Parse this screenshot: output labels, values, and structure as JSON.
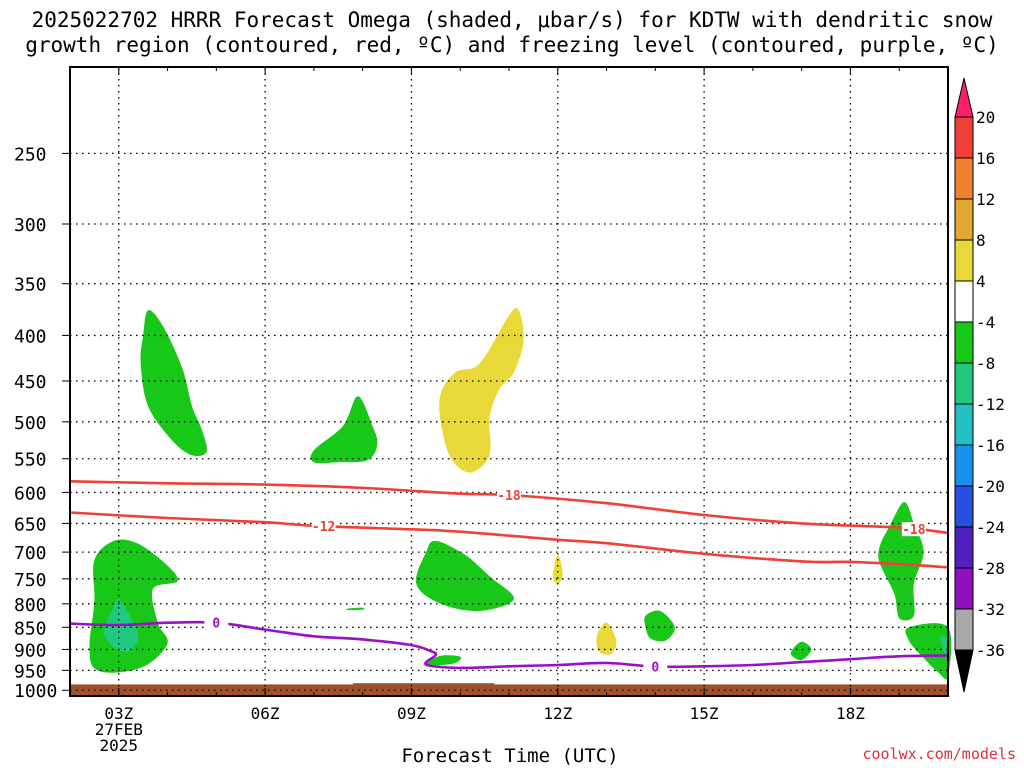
{
  "title_line1": "2025022702 HRRR Forecast Omega (shaded, μbar/s) for KDTW with dendritic snow",
  "title_line2": "growth region (contoured, red, ºC) and freezing level (contoured, purple, ºC)",
  "credit": "coolwx.com/models",
  "chart_data": {
    "type": "time-height cross section",
    "xlabel": "Forecast Time (UTC)",
    "x_ticks": [
      {
        "hour": 3,
        "lines": [
          "03Z",
          "27FEB",
          "2025"
        ]
      },
      {
        "hour": 6,
        "lines": [
          "06Z"
        ]
      },
      {
        "hour": 9,
        "lines": [
          "09Z"
        ]
      },
      {
        "hour": 12,
        "lines": [
          "12Z"
        ]
      },
      {
        "hour": 15,
        "lines": [
          "15Z"
        ]
      },
      {
        "hour": 18,
        "lines": [
          "18Z"
        ]
      }
    ],
    "x_range_hours": [
      2,
      20
    ],
    "y_axis_pressure_hpa": [
      250,
      300,
      350,
      400,
      450,
      500,
      550,
      600,
      650,
      700,
      750,
      800,
      850,
      900,
      950,
      1000
    ],
    "y_range_hpa": [
      200,
      1015
    ],
    "y_scale": "log-pressure (inverted)",
    "grid": true,
    "colorbar": {
      "labels": [
        "20",
        "16",
        "12",
        "8",
        "4",
        "-4",
        "-8",
        "-12",
        "-16",
        "-20",
        "-24",
        "-28",
        "-32",
        "-36"
      ],
      "colors": [
        "#ff1e6e",
        "#f04038",
        "#f08030",
        "#e0a830",
        "#e8d838",
        "#ffffff",
        "#18c818",
        "#20c880",
        "#20c0c0",
        "#1890f0",
        "#2850e0",
        "#5020c0",
        "#9010c0",
        "#a8a8a8",
        "#000000"
      ]
    },
    "contours": [
      {
        "label": "-18",
        "color": "#f04038",
        "points": [
          [
            2,
            583
          ],
          [
            4,
            586
          ],
          [
            6,
            588
          ],
          [
            8,
            593
          ],
          [
            10,
            602
          ],
          [
            11,
            604
          ],
          [
            13,
            617
          ],
          [
            15,
            636
          ],
          [
            17,
            650
          ],
          [
            19,
            657
          ],
          [
            20,
            666
          ]
        ]
      },
      {
        "label": "-12",
        "color": "#f04038",
        "points": [
          [
            2,
            632
          ],
          [
            4,
            641
          ],
          [
            6,
            648
          ],
          [
            7,
            654
          ],
          [
            9,
            660
          ],
          [
            10,
            664
          ],
          [
            12,
            678
          ],
          [
            13,
            684
          ],
          [
            15,
            703
          ],
          [
            17,
            717
          ],
          [
            18,
            718
          ],
          [
            19,
            722
          ],
          [
            20,
            728
          ]
        ]
      },
      {
        "label": "0",
        "color": "#9a10c8",
        "points": [
          [
            2,
            842
          ],
          [
            3,
            845
          ],
          [
            4,
            840
          ],
          [
            5,
            840
          ],
          [
            6,
            855
          ],
          [
            7,
            870
          ],
          [
            8,
            877
          ],
          [
            9,
            890
          ],
          [
            9.4,
            904
          ],
          [
            9.5,
            913
          ],
          [
            9.3,
            936
          ],
          [
            10,
            944
          ],
          [
            11,
            940
          ],
          [
            12,
            937
          ],
          [
            13,
            932
          ],
          [
            14,
            941
          ],
          [
            15,
            940
          ],
          [
            16,
            937
          ],
          [
            17,
            930
          ],
          [
            18,
            923
          ],
          [
            19,
            916
          ],
          [
            20,
            914
          ]
        ]
      }
    ],
    "omega_regions": [
      {
        "value_range": "-8 to -4",
        "color": "#18c818",
        "points": [
          [
            3.5,
            400
          ],
          [
            3.6,
            375
          ],
          [
            3.9,
            390
          ],
          [
            4.3,
            435
          ],
          [
            4.5,
            480
          ],
          [
            4.7,
            510
          ],
          [
            4.8,
            540
          ],
          [
            4.5,
            545
          ],
          [
            4.1,
            525
          ],
          [
            3.6,
            480
          ],
          [
            3.45,
            430
          ]
        ]
      },
      {
        "value_range": "-8 to -4",
        "color": "#18c818",
        "points": [
          [
            7.0,
            538
          ],
          [
            7.6,
            505
          ],
          [
            7.9,
            468
          ],
          [
            8.2,
            505
          ],
          [
            8.3,
            530
          ],
          [
            8.1,
            552
          ],
          [
            7.5,
            555
          ],
          [
            7.0,
            555
          ]
        ]
      },
      {
        "value_range": "4 to 8",
        "color": "#e8d838",
        "points": [
          [
            11.0,
            380
          ],
          [
            11.2,
            375
          ],
          [
            11.3,
            405
          ],
          [
            11.1,
            440
          ],
          [
            10.8,
            460
          ],
          [
            10.6,
            495
          ],
          [
            10.6,
            545
          ],
          [
            10.2,
            570
          ],
          [
            9.8,
            548
          ],
          [
            9.6,
            500
          ],
          [
            9.6,
            465
          ],
          [
            9.9,
            440
          ],
          [
            10.4,
            430
          ]
        ]
      },
      {
        "value_range": "-8 to -4",
        "color": "#18c818",
        "points": [
          [
            2.5,
            715
          ],
          [
            2.9,
            680
          ],
          [
            3.4,
            685
          ],
          [
            4.0,
            725
          ],
          [
            4.2,
            755
          ],
          [
            3.7,
            770
          ],
          [
            3.8,
            840
          ],
          [
            4.0,
            885
          ],
          [
            3.6,
            935
          ],
          [
            3.0,
            955
          ],
          [
            2.5,
            945
          ],
          [
            2.4,
            890
          ],
          [
            2.5,
            795
          ]
        ]
      },
      {
        "value_range": "-12 to -8",
        "color": "#20c880",
        "points": [
          [
            2.9,
            805
          ],
          [
            3.0,
            790
          ],
          [
            3.2,
            820
          ],
          [
            3.4,
            870
          ],
          [
            3.2,
            905
          ],
          [
            2.9,
            895
          ],
          [
            2.7,
            860
          ]
        ]
      },
      {
        "value_range": "-8 to -4",
        "color": "#18c818",
        "points": [
          [
            9.3,
            700
          ],
          [
            9.5,
            680
          ],
          [
            10.1,
            705
          ],
          [
            10.6,
            745
          ],
          [
            11.1,
            790
          ],
          [
            10.4,
            815
          ],
          [
            9.6,
            800
          ],
          [
            9.1,
            760
          ]
        ]
      },
      {
        "value_range": "-8 to -4",
        "color": "#18c818",
        "points": [
          [
            7.7,
            810
          ],
          [
            8.0,
            808
          ],
          [
            8.0,
            812
          ],
          [
            7.7,
            813
          ]
        ]
      },
      {
        "value_range": "-8 to -4",
        "color": "#18c818",
        "points": [
          [
            9.3,
            933
          ],
          [
            9.6,
            915
          ],
          [
            10.0,
            917
          ],
          [
            9.9,
            932
          ],
          [
            9.5,
            938
          ]
        ]
      },
      {
        "value_range": "-8 to -4",
        "color": "#18c818",
        "points": [
          [
            13.8,
            825
          ],
          [
            14.1,
            815
          ],
          [
            14.4,
            850
          ],
          [
            14.2,
            880
          ],
          [
            13.9,
            875
          ],
          [
            13.8,
            850
          ]
        ]
      },
      {
        "value_range": "-8 to -4",
        "color": "#18c818",
        "points": [
          [
            16.8,
            902
          ],
          [
            17.0,
            882
          ],
          [
            17.2,
            900
          ],
          [
            17.0,
            925
          ],
          [
            16.8,
            915
          ]
        ]
      },
      {
        "value_range": "4 to 8",
        "color": "#e8d838",
        "points": [
          [
            11.9,
            745
          ],
          [
            12.0,
            705
          ],
          [
            12.1,
            740
          ],
          [
            12.0,
            760
          ]
        ]
      },
      {
        "value_range": "4 to 8",
        "color": "#e8d838",
        "points": [
          [
            12.8,
            870
          ],
          [
            13.0,
            840
          ],
          [
            13.2,
            880
          ],
          [
            13.1,
            910
          ],
          [
            12.85,
            905
          ]
        ]
      },
      {
        "value_range": "-8 to -4",
        "color": "#18c818",
        "points": [
          [
            18.8,
            655
          ],
          [
            19.1,
            615
          ],
          [
            19.3,
            650
          ],
          [
            19.5,
            700
          ],
          [
            19.3,
            760
          ],
          [
            19.3,
            825
          ],
          [
            19.0,
            830
          ],
          [
            18.9,
            780
          ],
          [
            18.6,
            720
          ],
          [
            18.6,
            690
          ]
        ]
      },
      {
        "value_range": "-8 to -4",
        "color": "#18c818",
        "points": [
          [
            19.2,
            850
          ],
          [
            20,
            850
          ],
          [
            20,
            965
          ],
          [
            19.8,
            955
          ],
          [
            19.5,
            920
          ],
          [
            19.2,
            880
          ]
        ]
      },
      {
        "value_range": "-12 to -8",
        "color": "#20c880",
        "points": [
          [
            19.85,
            870
          ],
          [
            20,
            880
          ],
          [
            20,
            910
          ],
          [
            19.9,
            900
          ]
        ]
      }
    ],
    "terrain": {
      "color": "#a0502a",
      "top_hpa": 985,
      "bump": {
        "x_range_hours": [
          7.8,
          10.7
        ],
        "top_hpa": 982
      }
    }
  }
}
